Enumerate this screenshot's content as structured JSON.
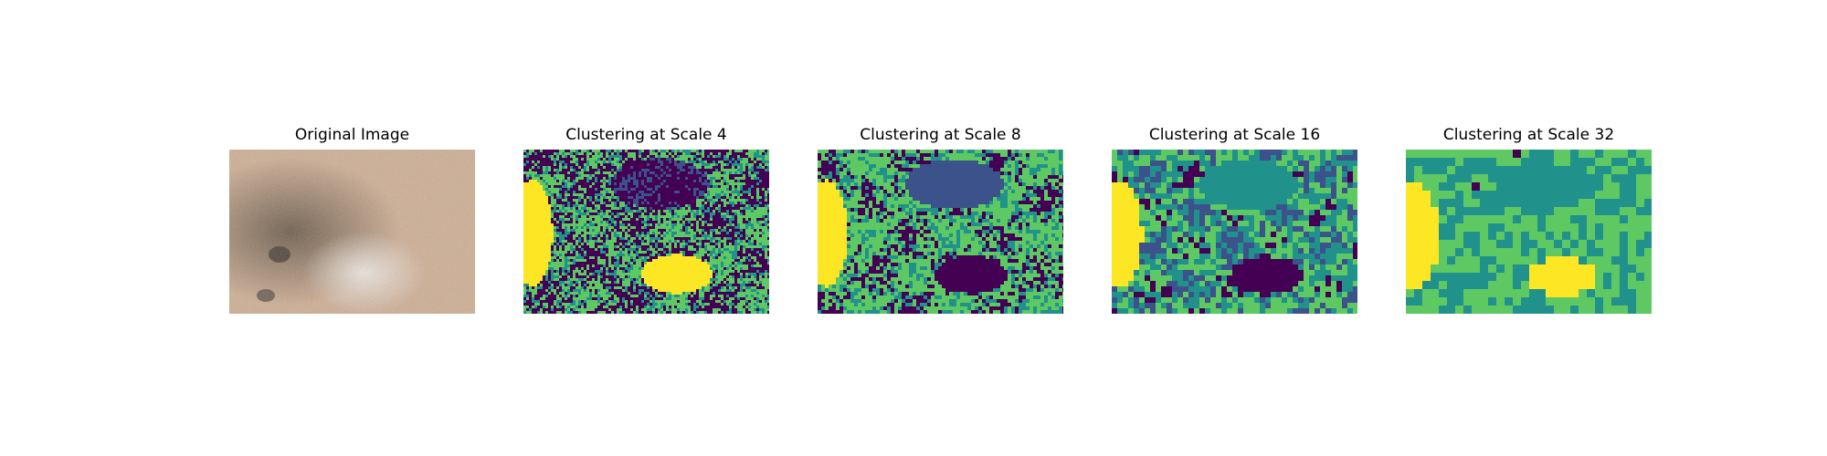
{
  "figure": {
    "panels": [
      {
        "title": "Original Image",
        "kind": "photo"
      },
      {
        "title": "Clustering at Scale 4",
        "kind": "cluster",
        "scale": 4
      },
      {
        "title": "Clustering at Scale 8",
        "kind": "cluster",
        "scale": 8
      },
      {
        "title": "Clustering at Scale 16",
        "kind": "cluster",
        "scale": 16
      },
      {
        "title": "Clustering at Scale 32",
        "kind": "cluster",
        "scale": 32
      }
    ],
    "cluster_colors": [
      "#440154",
      "#3b528b",
      "#21918c",
      "#5ec962",
      "#fde725"
    ],
    "photo_colors": [
      "#c9a98f",
      "#d8bca5",
      "#8a7460",
      "#4a4036"
    ]
  }
}
